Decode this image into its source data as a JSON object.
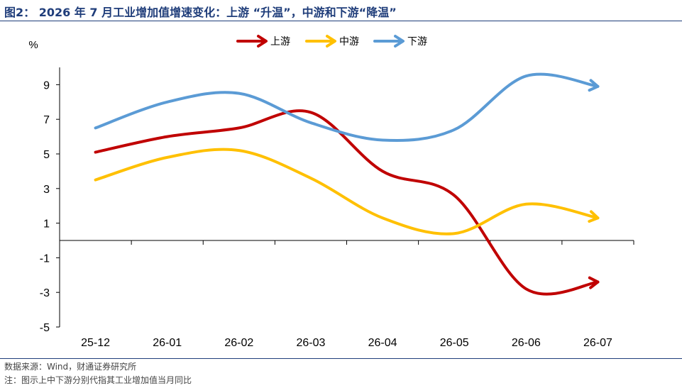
{
  "header": {
    "title": "图2： 2026 年 7 月工业增加值增速变化：上游 “升温”，中游和下游“降温”"
  },
  "footer": {
    "source": "数据来源：Wind，财通证券研究所",
    "note": "注：图示上中下游分别代指其工业增加值当月同比"
  },
  "chart_data": {
    "type": "line",
    "title": "",
    "xlabel": "",
    "ylabel": "%",
    "categories": [
      "25-12",
      "26-01",
      "26-02",
      "26-03",
      "26-04",
      "26-05",
      "26-06",
      "26-07"
    ],
    "ylim": [
      -5,
      10
    ],
    "yticks": [
      9,
      7,
      5,
      3,
      1,
      -1,
      -3,
      -5
    ],
    "grid": false,
    "legend": "top-center",
    "series": [
      {
        "name": "上游",
        "color": "#c00000",
        "values": [
          5.1,
          6.0,
          6.5,
          7.4,
          4.0,
          2.6,
          -2.8,
          -2.4
        ]
      },
      {
        "name": "中游",
        "color": "#ffc000",
        "values": [
          3.5,
          4.8,
          5.2,
          3.6,
          1.3,
          0.4,
          2.1,
          1.3
        ]
      },
      {
        "name": "下游",
        "color": "#5b9bd5",
        "values": [
          6.5,
          8.0,
          8.5,
          6.8,
          5.8,
          6.4,
          9.5,
          8.9
        ]
      }
    ]
  }
}
